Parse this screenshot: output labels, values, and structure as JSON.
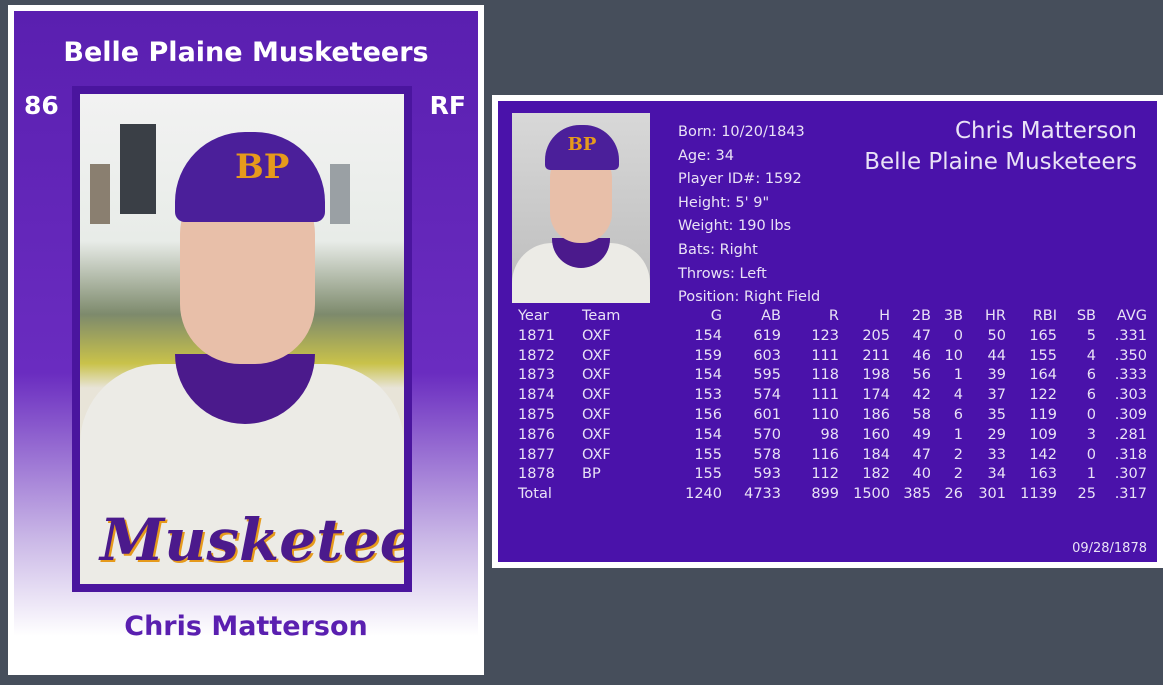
{
  "front": {
    "team": "Belle Plaine Musketeers",
    "rating": "86",
    "position": "RF",
    "name": "Chris Matterson",
    "cap_logo": "BP",
    "jersey_text": "Musketeers"
  },
  "back": {
    "name": "Chris Matterson",
    "team": "Belle Plaine Musketeers",
    "cap_logo": "BP",
    "bio": [
      "Born: 10/20/1843",
      "Age: 34",
      "Player ID#: 1592",
      "Height: 5' 9\"",
      "Weight: 190 lbs",
      "Bats: Right",
      "Throws: Left",
      "Position: Right Field"
    ],
    "stats": {
      "headers": [
        "Year",
        "Team",
        "G",
        "AB",
        "R",
        "H",
        "2B",
        "3B",
        "HR",
        "RBI",
        "SB",
        "AVG"
      ],
      "rows": [
        [
          "1871",
          "OXF",
          "154",
          "619",
          "123",
          "205",
          "47",
          "0",
          "50",
          "165",
          "5",
          ".331"
        ],
        [
          "1872",
          "OXF",
          "159",
          "603",
          "111",
          "211",
          "46",
          "10",
          "44",
          "155",
          "4",
          ".350"
        ],
        [
          "1873",
          "OXF",
          "154",
          "595",
          "118",
          "198",
          "56",
          "1",
          "39",
          "164",
          "6",
          ".333"
        ],
        [
          "1874",
          "OXF",
          "153",
          "574",
          "111",
          "174",
          "42",
          "4",
          "37",
          "122",
          "6",
          ".303"
        ],
        [
          "1875",
          "OXF",
          "156",
          "601",
          "110",
          "186",
          "58",
          "6",
          "35",
          "119",
          "0",
          ".309"
        ],
        [
          "1876",
          "OXF",
          "154",
          "570",
          "98",
          "160",
          "49",
          "1",
          "29",
          "109",
          "3",
          ".281"
        ],
        [
          "1877",
          "OXF",
          "155",
          "578",
          "116",
          "184",
          "47",
          "2",
          "33",
          "142",
          "0",
          ".318"
        ],
        [
          "1878",
          "BP",
          "155",
          "593",
          "112",
          "182",
          "40",
          "2",
          "34",
          "163",
          "1",
          ".307"
        ],
        [
          "Total",
          "",
          "1240",
          "4733",
          "899",
          "1500",
          "385",
          "26",
          "301",
          "1139",
          "25",
          ".317"
        ]
      ]
    },
    "date": "09/28/1878"
  },
  "colors": {
    "purple": "#4a12aa",
    "gold": "#e69a1c",
    "background": "#464e5b"
  }
}
